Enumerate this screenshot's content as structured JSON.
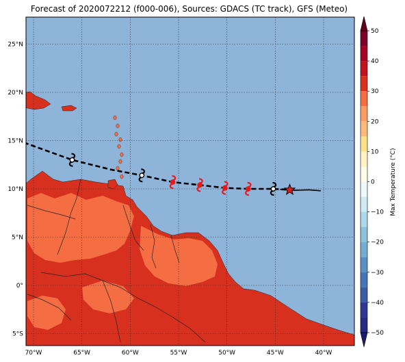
{
  "title": "Forecast of 2020072212 (f000-006), Sources: GDACS (TC track), GFS (Meteo)",
  "map": {
    "lon_range": [
      -70.7,
      -67.0
    ],
    "lat_range": [
      -6.2,
      27.8
    ],
    "lon_ticks": [
      {
        "lon": -70,
        "label": "70°W"
      },
      {
        "lon": -65,
        "label": "65°W"
      },
      {
        "lon": -60,
        "label": "60°W"
      },
      {
        "lon": -55,
        "label": "55°W"
      },
      {
        "lon": -50,
        "label": "50°W"
      },
      {
        "lon": -45,
        "label": "45°W"
      },
      {
        "lon": -40,
        "label": "40°W"
      }
    ],
    "lat_ticks": [
      {
        "lat": 25,
        "label": "25°N"
      },
      {
        "lat": 20,
        "label": "20°N"
      },
      {
        "lat": 15,
        "label": "15°N"
      },
      {
        "lat": 10,
        "label": "10°N"
      },
      {
        "lat": 5,
        "label": "5°N"
      },
      {
        "lat": 0,
        "label": "0°"
      },
      {
        "lat": -5,
        "label": "5°S"
      }
    ],
    "colors": {
      "ocean": "#8fb4d9",
      "land_hot": "#d7301f",
      "land_warm": "#f46d43",
      "border": "#222222",
      "track": "#000000",
      "forecast_storm": "#e41a1c"
    }
  },
  "track": {
    "past_line": [
      [
        -40.3,
        9.8
      ],
      [
        -41.5,
        9.9
      ],
      [
        -43.0,
        9.85
      ],
      [
        -44.5,
        9.95
      ]
    ],
    "forecast_line": [
      [
        -71.0,
        14.8
      ],
      [
        -66.0,
        13.0
      ],
      [
        -62.0,
        12.0
      ],
      [
        -58.8,
        11.4
      ],
      [
        -55.6,
        10.7
      ],
      [
        -52.8,
        10.4
      ],
      [
        -50.2,
        10.1
      ],
      [
        -47.8,
        10.0
      ],
      [
        -45.2,
        10.0
      ],
      [
        -43.5,
        9.9
      ]
    ],
    "storm_symbols": [
      {
        "lon": -66.0,
        "lat": 13.0,
        "style": "black"
      },
      {
        "lon": -58.8,
        "lat": 11.4,
        "style": "black"
      },
      {
        "lon": -55.6,
        "lat": 10.7,
        "style": "red"
      },
      {
        "lon": -52.8,
        "lat": 10.4,
        "style": "red"
      },
      {
        "lon": -50.2,
        "lat": 10.1,
        "style": "red"
      },
      {
        "lon": -47.8,
        "lat": 10.0,
        "style": "red"
      },
      {
        "lon": -45.2,
        "lat": 10.0,
        "style": "black"
      }
    ],
    "current_position": {
      "lon": -43.5,
      "lat": 9.9
    }
  },
  "colorbar": {
    "label": "Max Temperature (°C)",
    "ticks": [
      {
        "value": 50,
        "label": "50"
      },
      {
        "value": 40,
        "label": "40"
      },
      {
        "value": 30,
        "label": "30"
      },
      {
        "value": 20,
        "label": "20"
      },
      {
        "value": 10,
        "label": "10"
      },
      {
        "value": 0,
        "label": "0"
      },
      {
        "value": -10,
        "label": "−10"
      },
      {
        "value": -20,
        "label": "−20"
      },
      {
        "value": -30,
        "label": "−30"
      },
      {
        "value": -40,
        "label": "−40"
      },
      {
        "value": -50,
        "label": "−50"
      }
    ],
    "bands": [
      {
        "from": 45,
        "to": 50,
        "color": "#7f0026"
      },
      {
        "from": 40,
        "to": 45,
        "color": "#a50026"
      },
      {
        "from": 35,
        "to": 40,
        "color": "#c1121f"
      },
      {
        "from": 30,
        "to": 35,
        "color": "#d7301f"
      },
      {
        "from": 25,
        "to": 30,
        "color": "#f46d43"
      },
      {
        "from": 20,
        "to": 25,
        "color": "#fb9a62"
      },
      {
        "from": 15,
        "to": 20,
        "color": "#fdb97a"
      },
      {
        "from": 10,
        "to": 15,
        "color": "#fee08b"
      },
      {
        "from": 5,
        "to": 10,
        "color": "#fff3c4"
      },
      {
        "from": 0,
        "to": 5,
        "color": "#fffbe8"
      },
      {
        "from": -5,
        "to": 0,
        "color": "#eef8fb"
      },
      {
        "from": -10,
        "to": -5,
        "color": "#cfeaf2"
      },
      {
        "from": -15,
        "to": -10,
        "color": "#abd9e9"
      },
      {
        "from": -20,
        "to": -15,
        "color": "#8cc1dc"
      },
      {
        "from": -25,
        "to": -20,
        "color": "#74add1"
      },
      {
        "from": -30,
        "to": -25,
        "color": "#5a8fc2"
      },
      {
        "from": -35,
        "to": -30,
        "color": "#4575b4"
      },
      {
        "from": -40,
        "to": -35,
        "color": "#3b5ba5"
      },
      {
        "from": -45,
        "to": -40,
        "color": "#313695"
      },
      {
        "from": -50,
        "to": -45,
        "color": "#262a80"
      }
    ],
    "extend_max_color": "#67001f",
    "extend_min_color": "#1a1e6e"
  }
}
